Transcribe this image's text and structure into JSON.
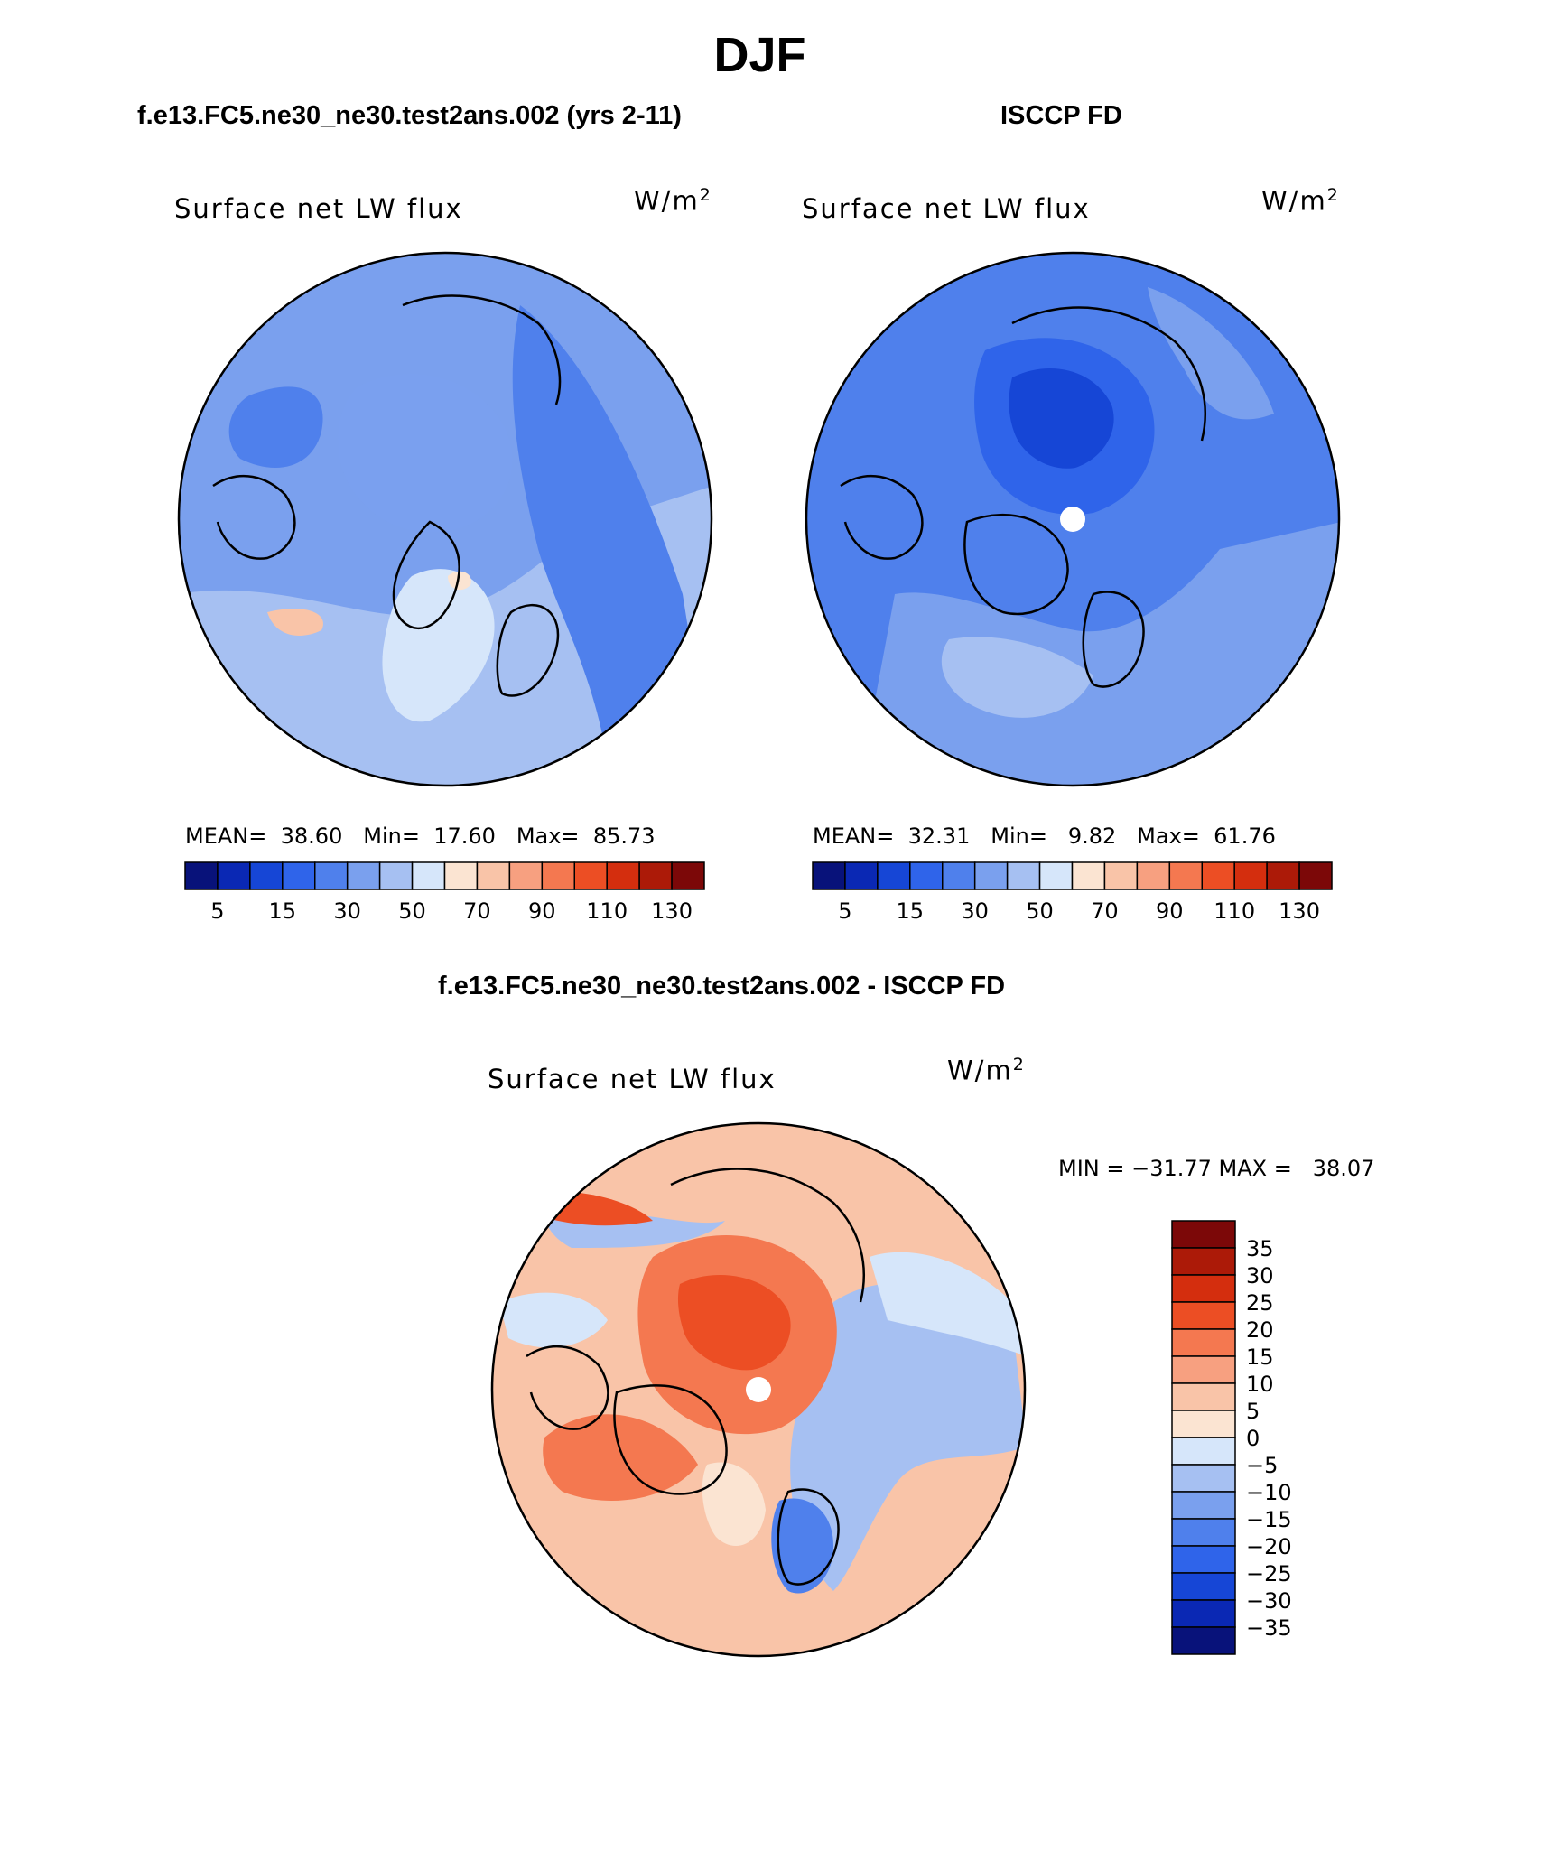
{
  "figure": {
    "title": "DJF",
    "panels": [
      {
        "case_title": "f.e13.FC5.ne30_ne30.test2ans.002 (yrs 2-11)",
        "variable": "Surface net LW flux",
        "units": "W/m",
        "units_exponent": "2",
        "stats": {
          "mean_label": "MEAN=",
          "mean": "38.60",
          "min_label": "Min=",
          "min": "17.60",
          "max_label": "Max=",
          "max": "85.73"
        },
        "colorbar_ticks": [
          "5",
          "15",
          "30",
          "50",
          "70",
          "90",
          "110",
          "130"
        ]
      },
      {
        "case_title": "ISCCP FD",
        "variable": "Surface net LW flux",
        "units": "W/m",
        "units_exponent": "2",
        "stats": {
          "mean_label": "MEAN=",
          "mean": "32.31",
          "min_label": "Min=",
          "min": "9.82",
          "max_label": "Max=",
          "max": "61.76"
        },
        "colorbar_ticks": [
          "5",
          "15",
          "30",
          "50",
          "70",
          "90",
          "110",
          "130"
        ]
      },
      {
        "case_title": "f.e13.FC5.ne30_ne30.test2ans.002 - ISCCP FD",
        "variable": "Surface net LW flux",
        "units": "W/m",
        "units_exponent": "2",
        "stats_text": "MIN = −31.77 MAX =   38.07",
        "colorbar_ticks": [
          "35",
          "30",
          "25",
          "20",
          "15",
          "10",
          "5",
          "0",
          "−5",
          "−10",
          "−15",
          "−20",
          "−25",
          "−30",
          "−35"
        ]
      }
    ],
    "colors": {
      "absolute_scale": [
        "#08127a",
        "#0a28b4",
        "#1646d6",
        "#2f64ea",
        "#4f80ec",
        "#7aa0ee",
        "#a6c0f2",
        "#d6e6fa",
        "#fbe4d2",
        "#f9c4a8",
        "#f7a080",
        "#f47850",
        "#ec4e24",
        "#d42e0e",
        "#ac1a08",
        "#7c0808"
      ],
      "difference_scale": [
        "#7c0808",
        "#ac1a08",
        "#d42e0e",
        "#ec4e24",
        "#f47850",
        "#f7a080",
        "#f9c4a8",
        "#fbe4d2",
        "#d6e6fa",
        "#a6c0f2",
        "#7aa0ee",
        "#4f80ec",
        "#2f64ea",
        "#1646d6",
        "#0a28b4",
        "#08127a"
      ],
      "map1_base": "#7aa0ee",
      "map2_base": "#4f80ec",
      "map3_base": "#f9c4a8"
    }
  }
}
